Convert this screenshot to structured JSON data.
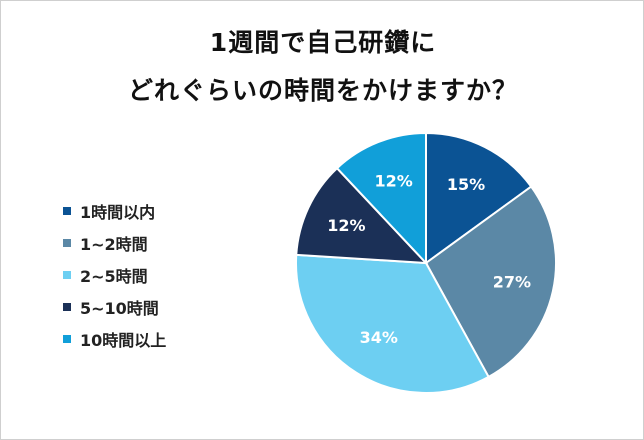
{
  "title_lines": [
    "1週間で自己研鑽に",
    "どれぐらいの時間をかけますか？"
  ],
  "chart_data": {
    "type": "pie",
    "title": "1週間で自己研鑽に どれぐらいの時間をかけますか？",
    "categories": [
      "1時間以内",
      "1~2時間",
      "2~5時間",
      "5~10時間",
      "10時間以上"
    ],
    "values": [
      15,
      27,
      34,
      12,
      12
    ],
    "data_labels": [
      "15%",
      "27%",
      "34%",
      "12%",
      "12%"
    ],
    "colors": [
      "#0b5394",
      "#5b88a6",
      "#6dcff2",
      "#1b3057",
      "#119fd9"
    ],
    "unit": "%",
    "start_angle": "12 o'clock",
    "direction": "clockwise",
    "legend_position": "left"
  }
}
